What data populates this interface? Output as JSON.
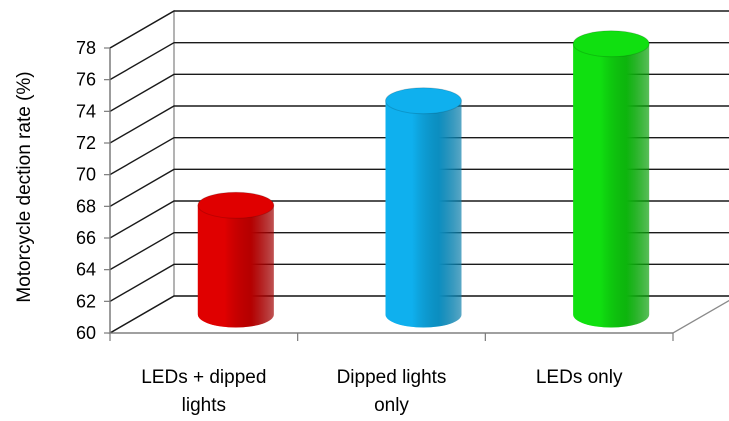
{
  "chart_data": {
    "type": "bar",
    "title": "",
    "xlabel": "",
    "ylabel": "Motorcycle dection rate (%)",
    "ylim": [
      60,
      78
    ],
    "yticks": [
      60,
      62,
      64,
      66,
      68,
      70,
      72,
      74,
      76,
      78
    ],
    "categories": [
      [
        "LEDs + dipped",
        "lights"
      ],
      [
        "Dipped lights",
        "only"
      ],
      [
        "LEDs only"
      ]
    ],
    "values": [
      66.9,
      73.5,
      77.1
    ],
    "bar_colors": [
      "#e00000",
      "#0fb0ee",
      "#10e010"
    ],
    "bar_shape": "cylinder-3d",
    "grid": true,
    "legend": "none"
  }
}
